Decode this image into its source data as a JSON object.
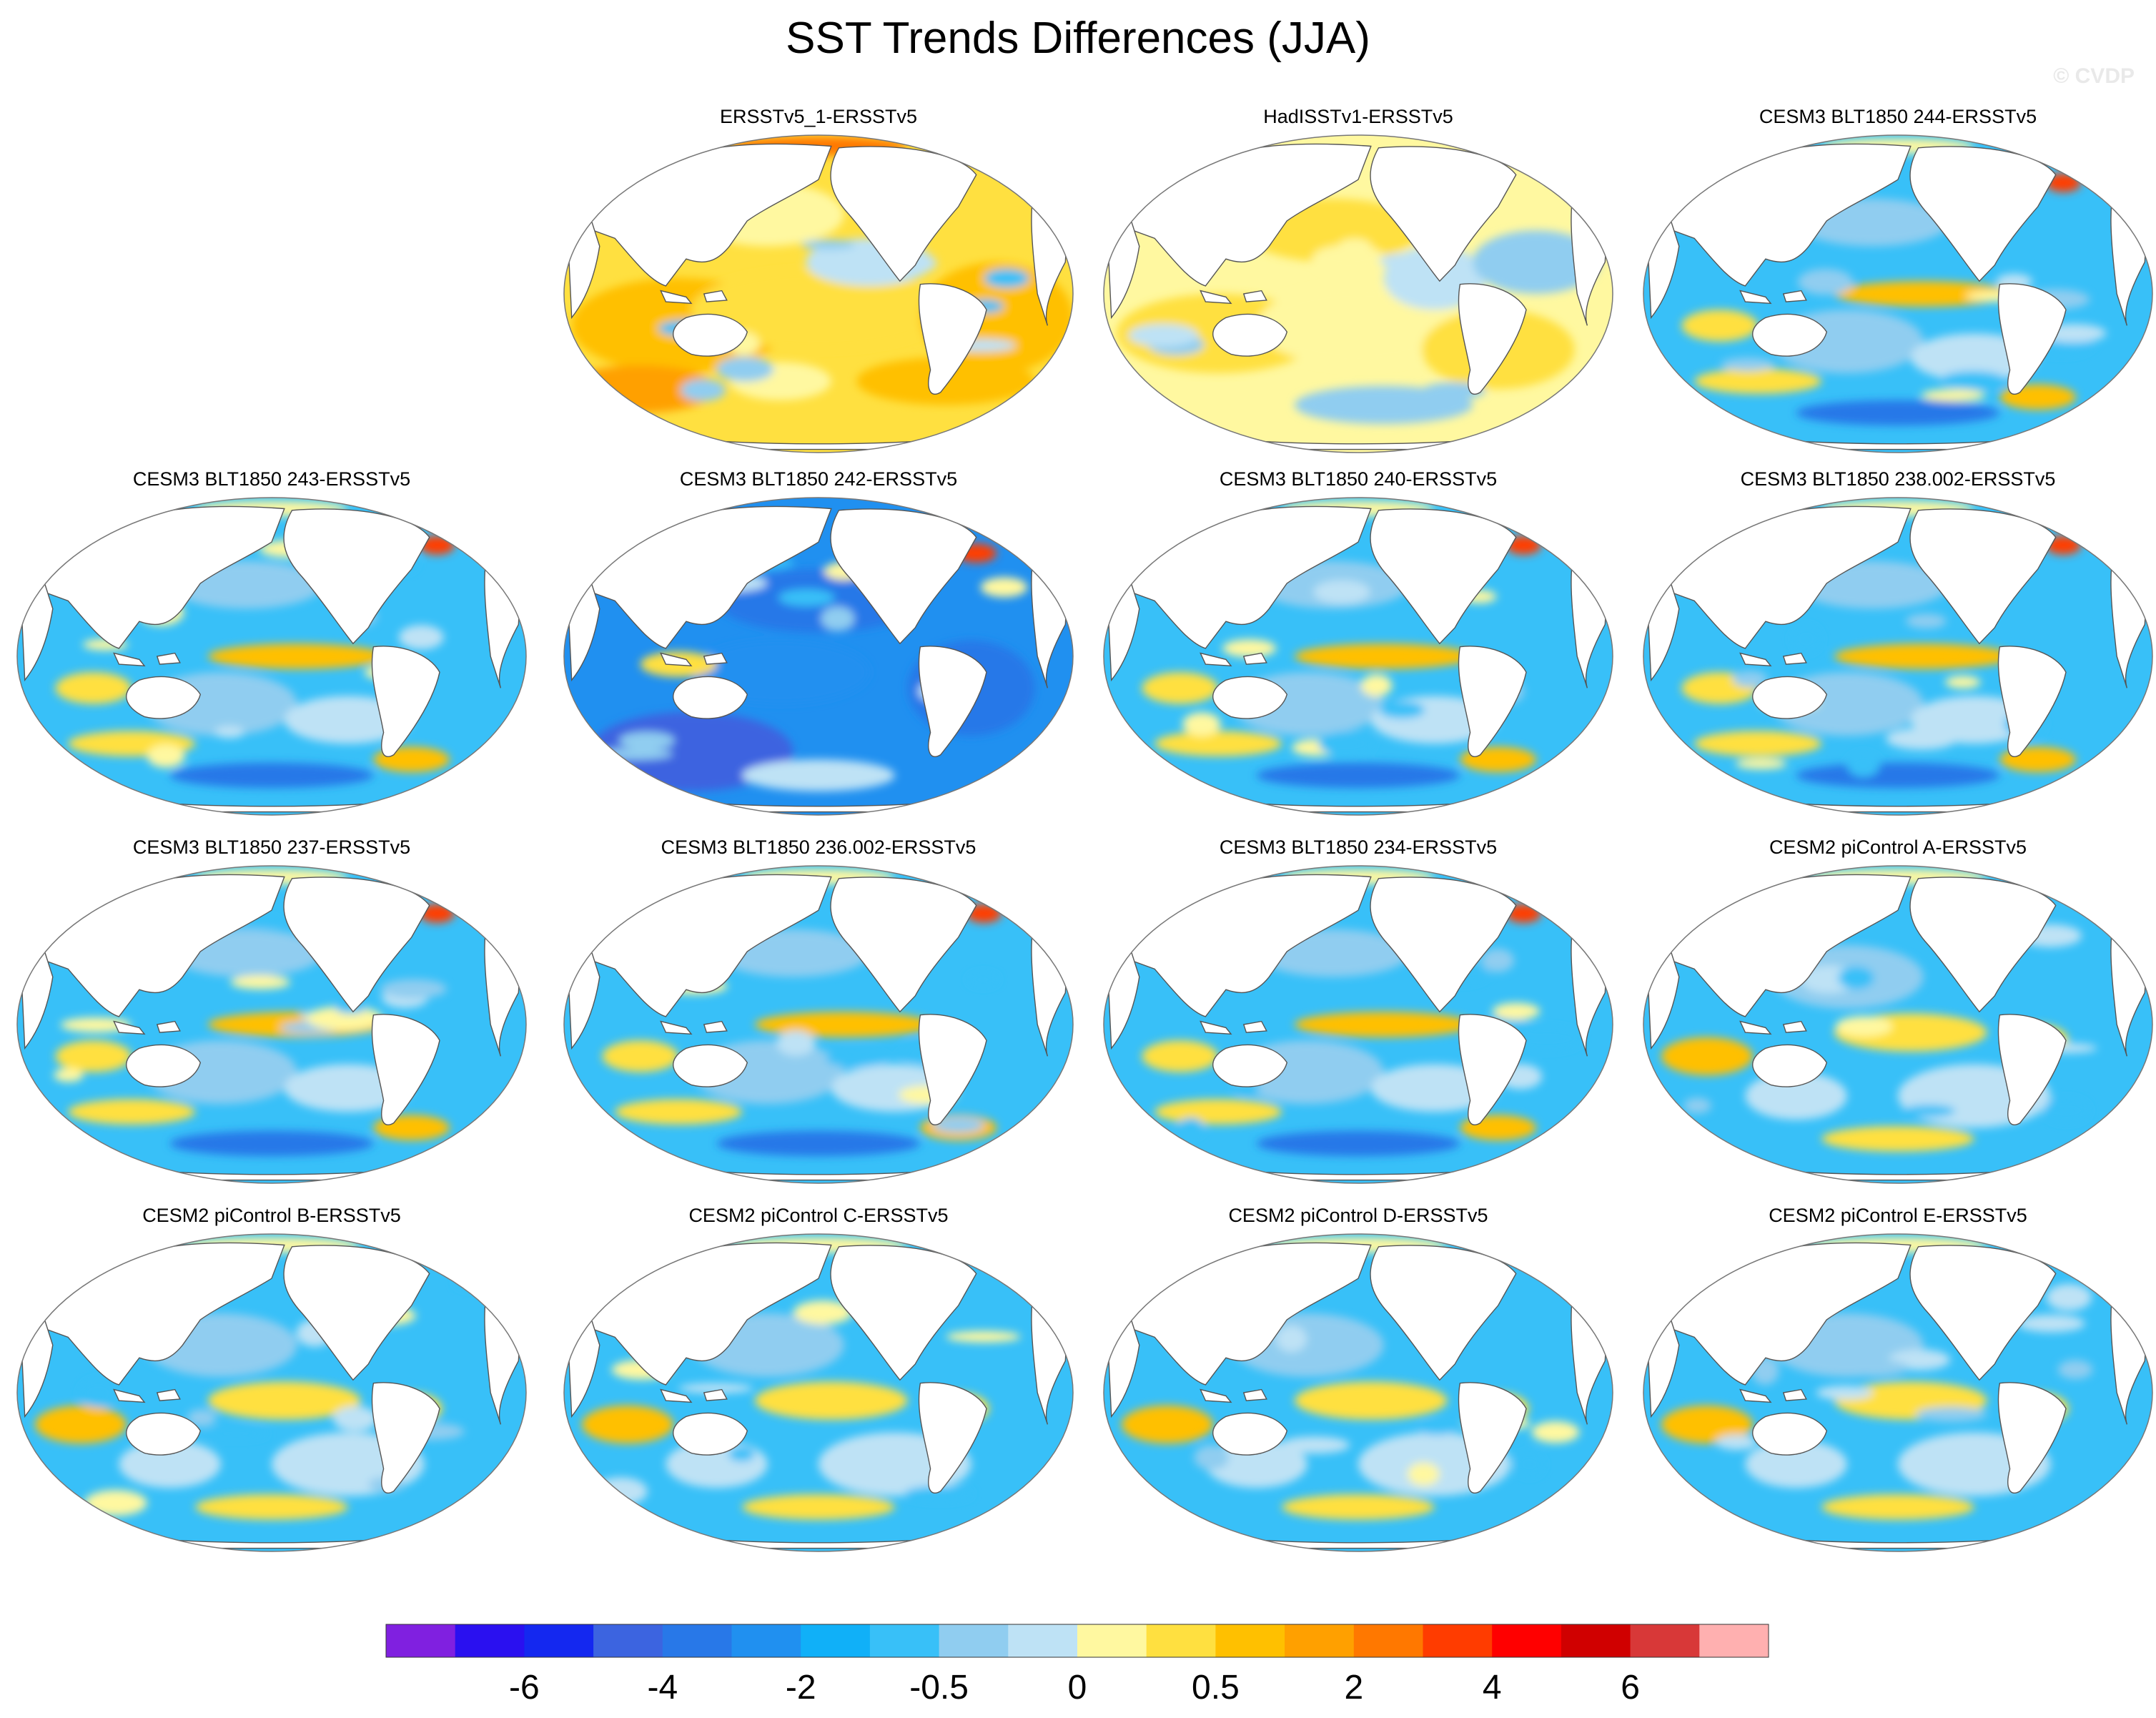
{
  "title": "SST Trends Differences (JJA)",
  "watermark": "© CVDP",
  "chart_data": {
    "type": "heatmap",
    "projection": "Robinson (Pacific-centered global ocean maps)",
    "title": "SST Trends Differences (JJA)",
    "layout": {
      "rows": 4,
      "cols": 4,
      "empty_slots": [
        [
          0,
          0
        ]
      ]
    },
    "panels": [
      {
        "label": "ERSSTv5_1-ERSSTv5",
        "pattern": "warm"
      },
      {
        "label": "HadISSTv1-ERSSTv5",
        "pattern": "warm-mixed"
      },
      {
        "label": "CESM3 BLT1850 244-ERSSTv5",
        "pattern": "cool"
      },
      {
        "label": "CESM3 BLT1850 243-ERSSTv5",
        "pattern": "cool"
      },
      {
        "label": "CESM3 BLT1850 242-ERSSTv5",
        "pattern": "cold"
      },
      {
        "label": "CESM3 BLT1850 240-ERSSTv5",
        "pattern": "cool"
      },
      {
        "label": "CESM3 BLT1850 238.002-ERSSTv5",
        "pattern": "cool"
      },
      {
        "label": "CESM3 BLT1850 237-ERSSTv5",
        "pattern": "cool"
      },
      {
        "label": "CESM3 BLT1850 236.002-ERSSTv5",
        "pattern": "cool"
      },
      {
        "label": "CESM3 BLT1850 234-ERSSTv5",
        "pattern": "cool"
      },
      {
        "label": "CESM2 piControl A-ERSSTv5",
        "pattern": "cool-light"
      },
      {
        "label": "CESM2 piControl B-ERSSTv5",
        "pattern": "cool-light"
      },
      {
        "label": "CESM2 piControl C-ERSSTv5",
        "pattern": "cool-light"
      },
      {
        "label": "CESM2 piControl D-ERSSTv5",
        "pattern": "cool-light"
      },
      {
        "label": "CESM2 piControl E-ERSSTv5",
        "pattern": "cool-light"
      }
    ],
    "colorbar": {
      "levels": [
        -8,
        -6,
        -5,
        -4,
        -3,
        -2,
        -1,
        -0.5,
        -0.25,
        0,
        0.25,
        0.5,
        1,
        2,
        3,
        4,
        5,
        6,
        8
      ],
      "tick_labels": [
        "-6",
        "-4",
        "-2",
        "-0.5",
        "0",
        "0.5",
        "2",
        "4",
        "6"
      ],
      "colors": [
        "#8020e0",
        "#2a10f0",
        "#1428f0",
        "#3c64e0",
        "#2878e8",
        "#2090f0",
        "#10b0f8",
        "#38c0f8",
        "#90cdf0",
        "#bee2f5",
        "#fff8a0",
        "#ffe040",
        "#ffc000",
        "#ffa000",
        "#ff7800",
        "#ff3c00",
        "#ff0000",
        "#d00000",
        "#d83838",
        "#ffb0b0"
      ]
    }
  }
}
